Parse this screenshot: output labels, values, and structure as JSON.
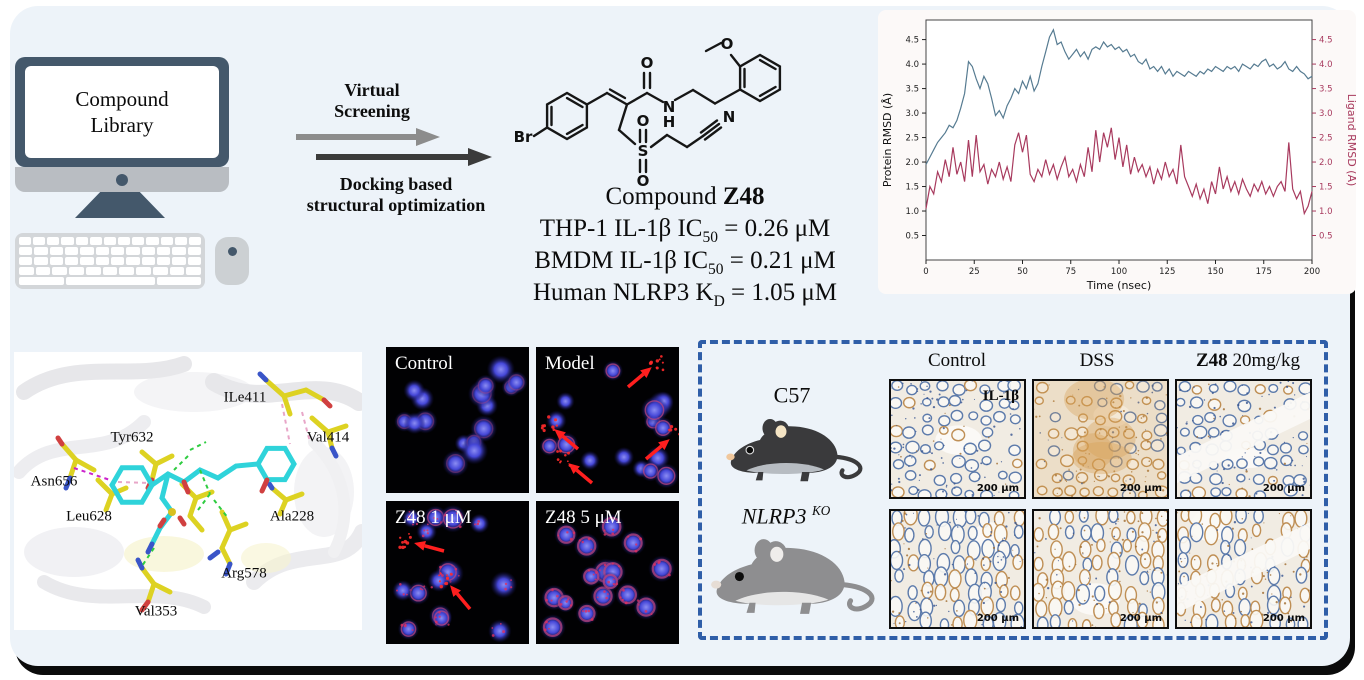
{
  "workflow": {
    "computer_screen_label_line1": "Compound",
    "computer_screen_label_line2": "Library",
    "arrow1_label_line1": "Virtual",
    "arrow1_label_line2": "Screening",
    "arrow2_label_line1": "Docking based",
    "arrow2_label_line2": "structural optimization",
    "arrow1_color": "#8c8c8c",
    "arrow2_color": "#3b3b3b"
  },
  "compound": {
    "title_prefix": "Compound ",
    "title_name": "Z48",
    "atoms": {
      "br": "Br",
      "o_carbonyl": "O",
      "n_amide": "N",
      "h_amide": "H",
      "o_methoxy": "O",
      "s": "S",
      "o_s_top": "O",
      "o_s_bottom": "O",
      "n_nitrile": "N"
    },
    "assays": [
      {
        "pre": "THP-1 IL-1β IC",
        "sub": "50",
        "post": " = 0.26 μM"
      },
      {
        "pre": "BMDM IL-1β IC",
        "sub": "50",
        "post": " = 0.21 μM"
      },
      {
        "pre": "Human NLRP3 K",
        "sub": "D",
        "post": " = 1.05 μM"
      }
    ]
  },
  "chart_data": {
    "type": "line",
    "title": "",
    "xlabel": "Time (nsec)",
    "ylabel_left": "Protein RMSD (Å)",
    "ylabel_right": "Ligand RMSD (Å)",
    "xlim": [
      0,
      200
    ],
    "ylim": [
      0,
      4.9
    ],
    "xticks": [
      0,
      25,
      50,
      75,
      100,
      125,
      150,
      175,
      200
    ],
    "yticks": [
      0.5,
      1.0,
      1.5,
      2.0,
      2.5,
      3.0,
      3.5,
      4.0,
      4.5
    ],
    "grid": false,
    "legend": "none",
    "x_step": 2,
    "series": [
      {
        "name": "Protein RMSD",
        "axis": "left",
        "color": "#567b91",
        "values": [
          1.95,
          2.1,
          2.25,
          2.4,
          2.5,
          2.6,
          2.75,
          2.7,
          2.85,
          3.1,
          3.4,
          4.05,
          3.95,
          3.7,
          3.5,
          3.75,
          3.6,
          3.3,
          2.95,
          3.05,
          2.9,
          3.15,
          3.3,
          3.5,
          3.4,
          3.65,
          3.5,
          3.75,
          3.45,
          3.6,
          3.95,
          4.25,
          4.55,
          4.7,
          4.4,
          4.45,
          4.25,
          4.1,
          4.2,
          4.3,
          4.15,
          4.25,
          4.1,
          4.3,
          4.35,
          4.3,
          4.45,
          4.35,
          4.4,
          4.3,
          4.35,
          4.25,
          4.3,
          4.15,
          4.2,
          4.05,
          4.0,
          4.1,
          3.9,
          3.95,
          3.85,
          3.95,
          3.8,
          3.9,
          3.75,
          3.85,
          3.8,
          3.75,
          3.85,
          3.8,
          3.75,
          3.85,
          3.8,
          3.9,
          3.85,
          3.95,
          3.9,
          3.85,
          3.95,
          3.9,
          3.95,
          3.85,
          4.0,
          3.95,
          3.9,
          4.0,
          3.95,
          4.05,
          4.1,
          3.95,
          4.0,
          3.9,
          3.95,
          4.05,
          3.9,
          3.85,
          3.95,
          3.85,
          3.8,
          3.7,
          3.75
        ]
      },
      {
        "name": "Ligand RMSD",
        "axis": "right",
        "color": "#a83a5e",
        "values": [
          1.05,
          1.5,
          1.35,
          1.8,
          1.6,
          2.05,
          1.7,
          2.3,
          1.75,
          2.0,
          1.6,
          2.45,
          1.7,
          2.55,
          1.8,
          1.95,
          1.55,
          1.85,
          1.7,
          2.0,
          1.65,
          1.9,
          1.6,
          2.35,
          2.6,
          2.2,
          2.55,
          1.75,
          1.6,
          1.85,
          1.7,
          2.05,
          1.75,
          1.95,
          1.65,
          1.9,
          2.1,
          1.7,
          1.85,
          1.6,
          1.95,
          1.7,
          2.3,
          1.8,
          2.65,
          2.0,
          2.6,
          2.3,
          2.7,
          2.05,
          2.5,
          1.9,
          2.35,
          1.75,
          2.1,
          1.8,
          1.95,
          1.7,
          1.9,
          1.55,
          1.85,
          1.65,
          2.0,
          1.7,
          1.85,
          1.55,
          2.35,
          1.7,
          1.5,
          1.3,
          1.55,
          1.25,
          1.45,
          1.15,
          1.6,
          1.35,
          1.9,
          1.45,
          1.7,
          1.4,
          1.6,
          1.35,
          1.65,
          1.45,
          1.3,
          1.55,
          1.4,
          1.6,
          1.35,
          1.5,
          1.3,
          1.5,
          1.6,
          1.4,
          2.4,
          1.45,
          1.25,
          1.4,
          0.95,
          1.1,
          1.4
        ]
      }
    ]
  },
  "docking": {
    "residues": [
      "ILe411",
      "Tyr632",
      "Val414",
      "Asn656",
      "Leu628",
      "Ala228",
      "Arg578",
      "Val353"
    ]
  },
  "fluorescence": {
    "panels": [
      {
        "label": "Control",
        "arrows": 0
      },
      {
        "label": "Model",
        "arrows": 4
      },
      {
        "label": "Z48 1 μM",
        "arrows": 2
      },
      {
        "label": "Z48 5 μM",
        "arrows": 0
      }
    ]
  },
  "invivo": {
    "border_color": "#2f5ea8",
    "col_headers": [
      {
        "bold": "",
        "text": "Control"
      },
      {
        "bold": "",
        "text": "DSS"
      },
      {
        "bold": "Z48",
        "text": " 20mg/kg"
      }
    ],
    "mice": [
      {
        "name": "C57",
        "sup": "",
        "body": "#3a3a3c",
        "belly": "#b7bcc2",
        "ear": "#f4e4c4",
        "nose": "#f0c79c"
      },
      {
        "name": "NLRP3 ",
        "sup": "KO",
        "body": "#8e8e90",
        "belly": "#e6e6e6",
        "ear": "#efedeb",
        "nose": "#e6ddd5"
      }
    ],
    "marker_label": "IL-1β",
    "scale_label": "200 μm",
    "ihc_styles": [
      [
        "blue-dense",
        "orange-wash",
        "blue-band"
      ],
      [
        "blue-crypt",
        "tan-gland",
        "tan-band"
      ]
    ]
  }
}
